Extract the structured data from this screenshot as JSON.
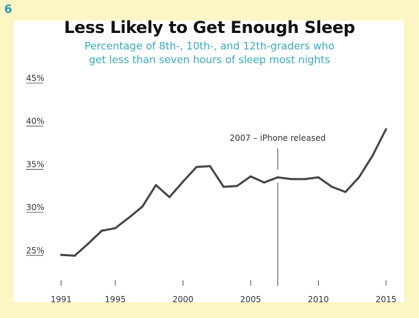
{
  "badge": "6",
  "chart_data": {
    "type": "line",
    "title": "Less Likely to Get Enough Sleep",
    "subtitle_lines": [
      "Percentage of 8th-, 10th-, and 12th-graders who",
      "get less than seven hours of sleep most nights"
    ],
    "xlabel": "",
    "ylabel": "",
    "x_ticks": [
      1991,
      1995,
      2000,
      2005,
      2010,
      2015
    ],
    "y_ticks": [
      "25%",
      "30%",
      "35%",
      "40%",
      "45%"
    ],
    "y_tick_values": [
      25,
      30,
      35,
      40,
      45
    ],
    "xlim": [
      1991,
      2015
    ],
    "ylim": [
      21,
      45
    ],
    "annotation": {
      "text": "2007 – iPhone released",
      "x": 2007
    },
    "colors": {
      "line": "#444444",
      "marker_line": "#444444",
      "subtitle": "#3aa9bd",
      "badge": "#2a9fb8"
    },
    "series": [
      {
        "x": [
          1991,
          1992,
          1993,
          1994,
          1995,
          1996,
          1997,
          1998,
          1999,
          2000,
          2001,
          2002,
          2003,
          2004,
          2005,
          2006,
          2007,
          2008,
          2009,
          2010,
          2011,
          2012,
          2013,
          2014,
          2015
        ],
        "values": [
          25.3,
          25.2,
          26.6,
          28.1,
          28.4,
          29.6,
          30.9,
          33.4,
          32.0,
          33.8,
          35.5,
          35.6,
          33.2,
          33.3,
          34.4,
          33.7,
          34.3,
          34.1,
          34.1,
          34.3,
          33.2,
          32.6,
          34.3,
          36.8,
          39.9
        ]
      }
    ]
  }
}
